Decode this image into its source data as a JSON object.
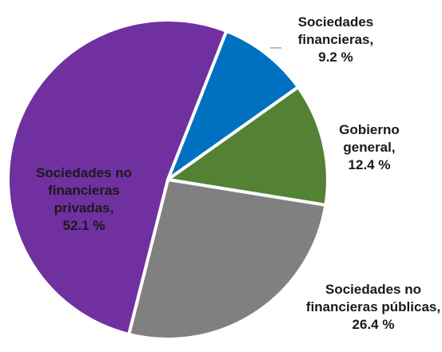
{
  "chart_data": {
    "type": "pie",
    "categories": [
      "Sociedades financieras,",
      "Gobierno general,",
      "Sociedades no financieras públicas,",
      "Sociedades no financieras privadas,"
    ],
    "values": [
      9.2,
      12.4,
      26.4,
      52.1
    ],
    "value_labels": [
      "9.2 %",
      "12.4 %",
      "26.4 %",
      "52.1 %"
    ],
    "colors": [
      "#0070c0",
      "#548235",
      "#808080",
      "#7030a0"
    ]
  }
}
